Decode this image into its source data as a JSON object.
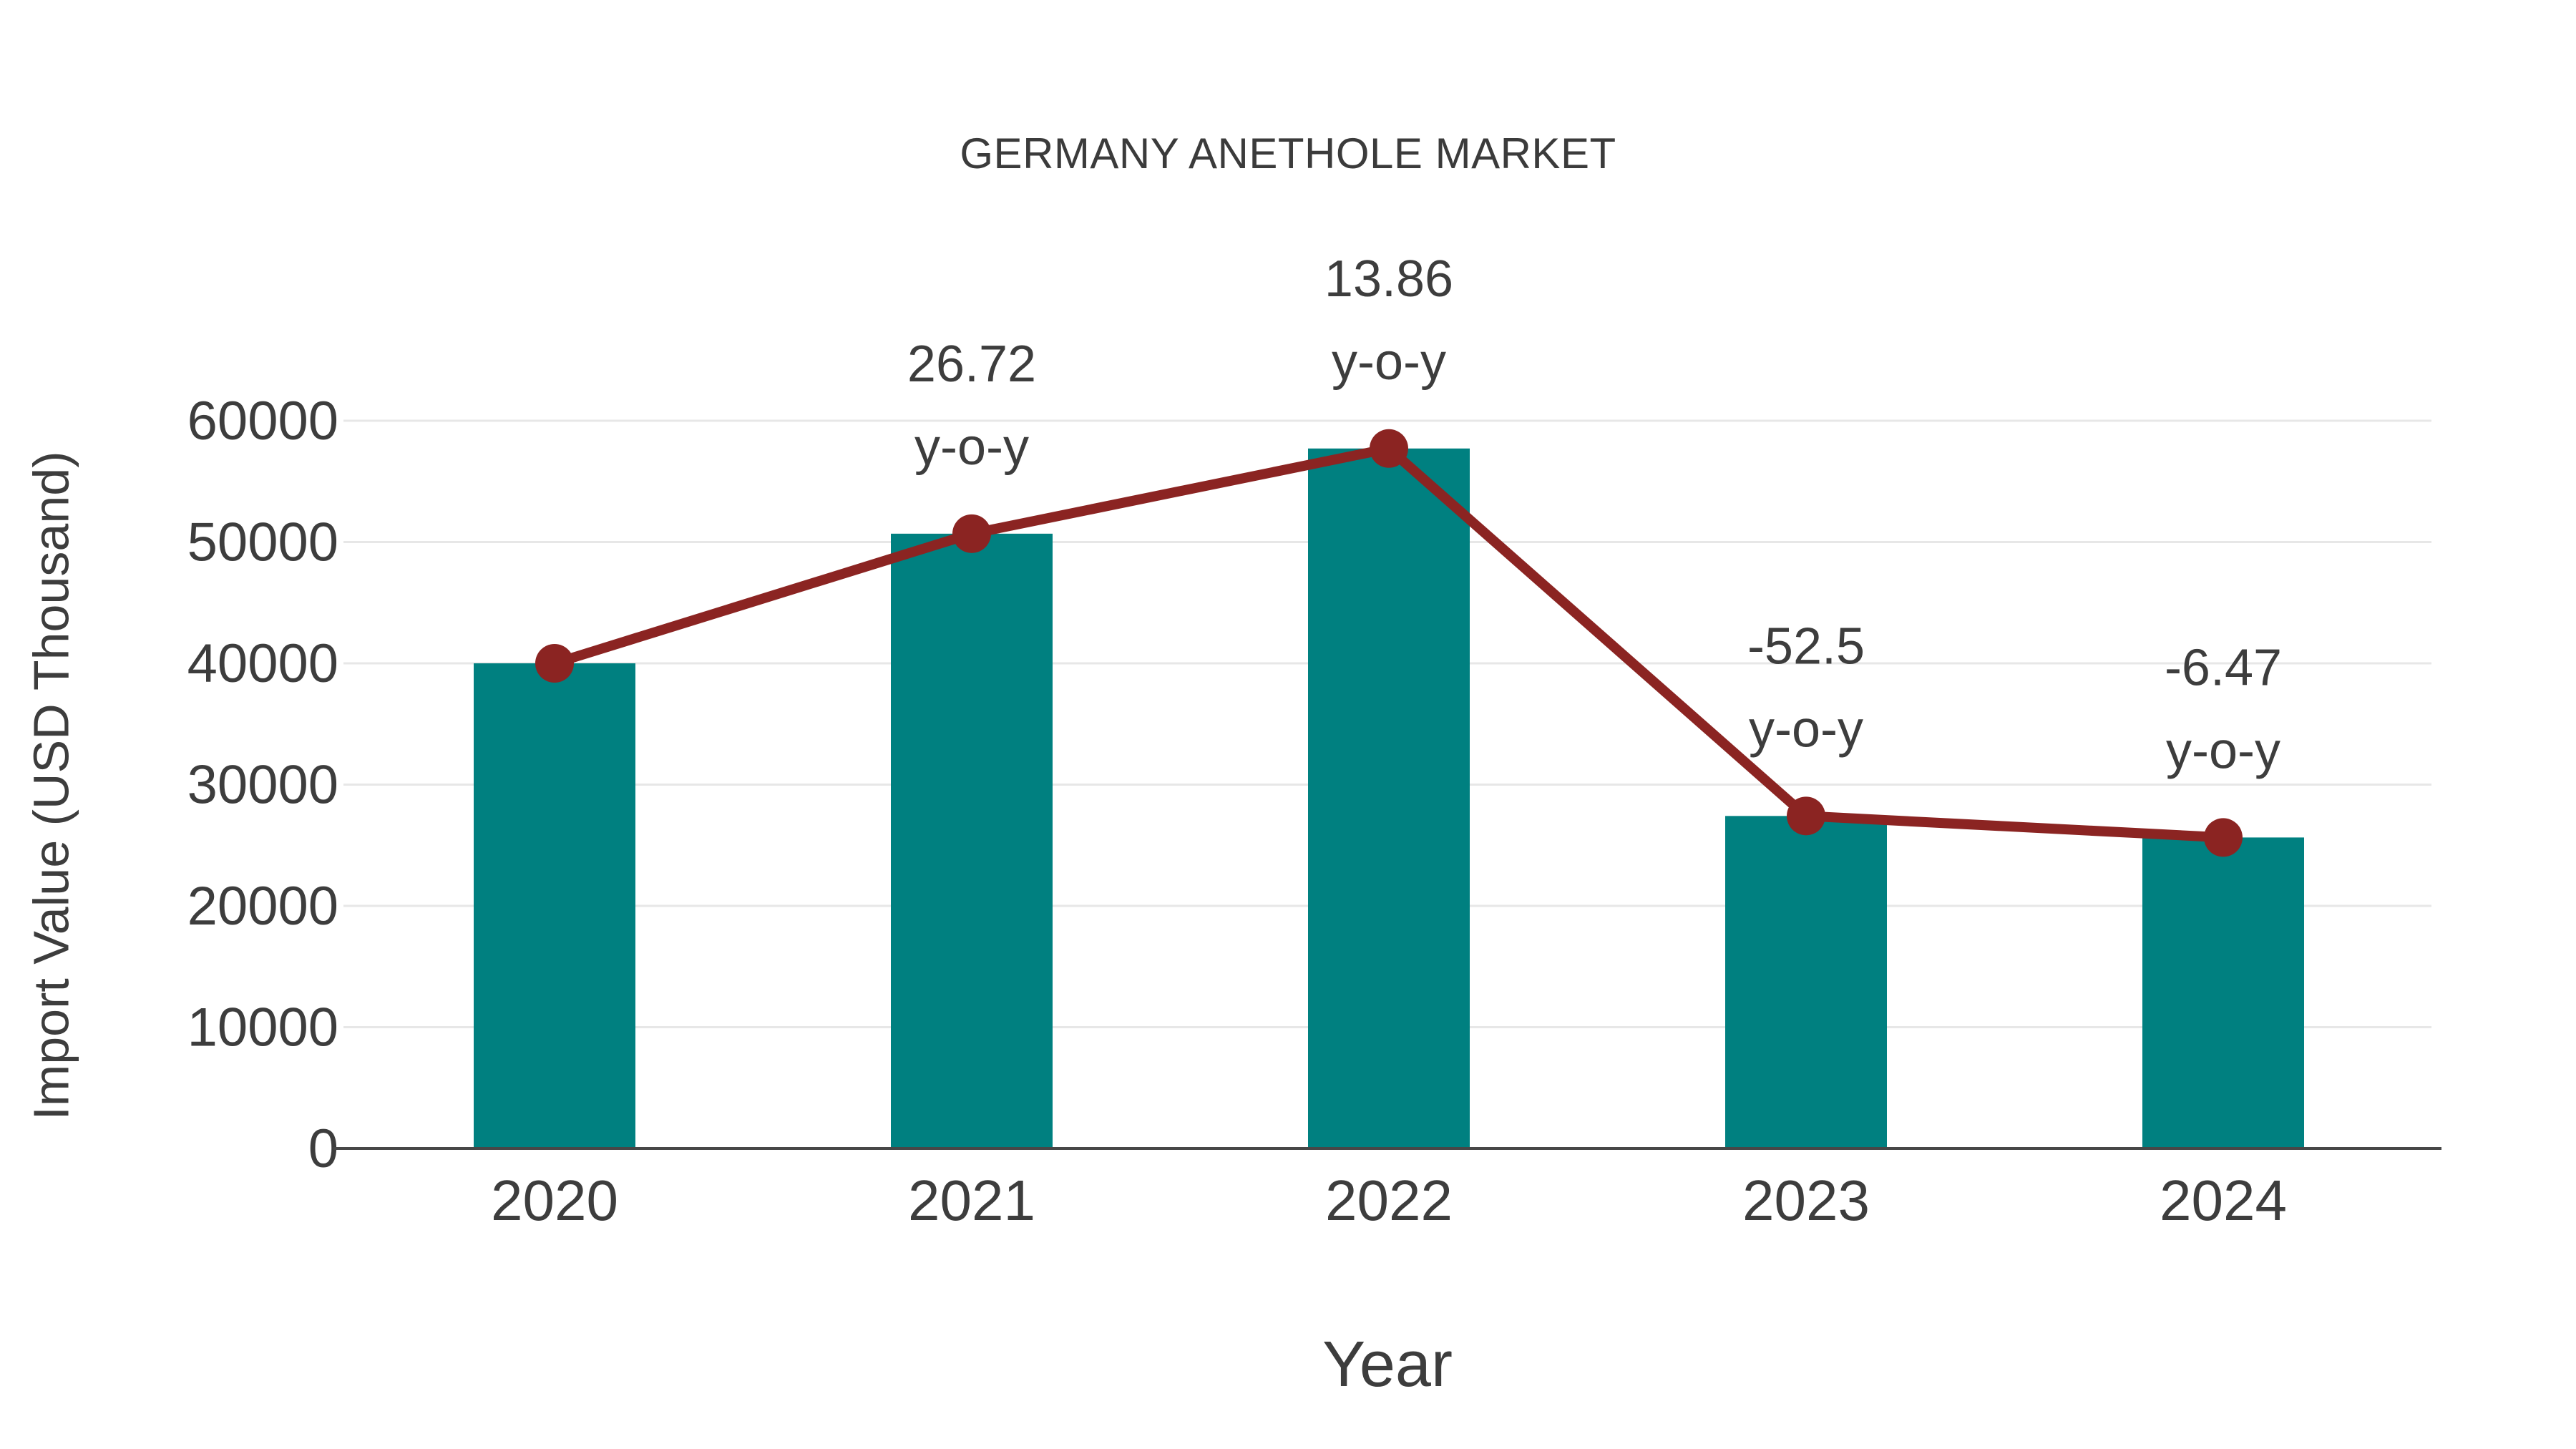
{
  "title": "GERMANY ANETHOLE MARKET",
  "colors": {
    "bar": "#008080",
    "line": "#8b2422",
    "marker": "#8b2422",
    "text": "#3d3d3d",
    "grid": "#e7e7e7",
    "axis": "#474747",
    "background": "#ffffff"
  },
  "chart_data": {
    "type": "bar",
    "title": "GERMANY ANETHOLE MARKET",
    "xlabel": "Year",
    "ylabel": "Import Value (USD Thousand)",
    "categories": [
      "2020",
      "2021",
      "2022",
      "2023",
      "2024"
    ],
    "series": [
      {
        "name": "Import Value bars",
        "type": "bar",
        "color": "#008080",
        "values": [
          40000,
          50688,
          57713,
          27414,
          25640
        ]
      },
      {
        "name": "Import Value trend line",
        "type": "line",
        "color": "#8b2422",
        "values": [
          40000,
          50688,
          57713,
          27414,
          25640
        ]
      }
    ],
    "annotations": [
      {
        "category": "2021",
        "lines": [
          "26.72",
          "y-o-y"
        ]
      },
      {
        "category": "2022",
        "lines": [
          "13.86",
          "y-o-y"
        ]
      },
      {
        "category": "2023",
        "lines": [
          "-52.5",
          "y-o-y"
        ]
      },
      {
        "category": "2024",
        "lines": [
          "-6.47",
          "y-o-y"
        ]
      }
    ],
    "yticks": [
      0,
      10000,
      20000,
      30000,
      40000,
      50000,
      60000
    ],
    "ylim": [
      0,
      60000
    ],
    "grid": true,
    "legend": false
  }
}
